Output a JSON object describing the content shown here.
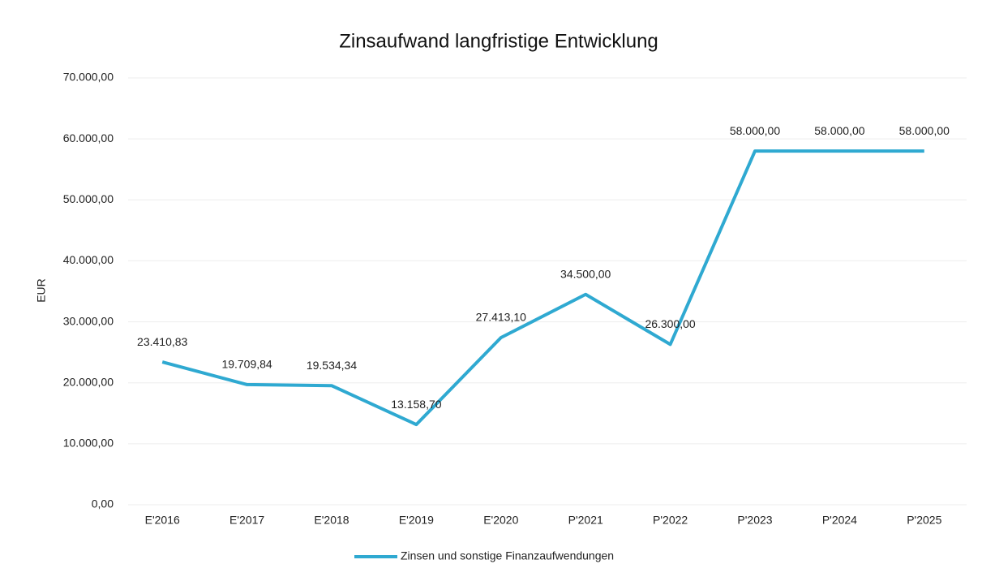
{
  "chart_data": {
    "type": "line",
    "title": "Zinsaufwand langfristige Entwicklung",
    "y_label": "EUR",
    "categories": [
      "E'2016",
      "E'2017",
      "E'2018",
      "E'2019",
      "E'2020",
      "P'2021",
      "P'2022",
      "P'2023",
      "P'2024",
      "P'2025"
    ],
    "series": [
      {
        "name": "Zinsen und sonstige Finanzaufwendungen",
        "color": "#2fa9d1",
        "values": [
          23410.83,
          19709.84,
          19534.34,
          13158.7,
          27413.1,
          34500.0,
          26300.0,
          58000.0,
          58000.0,
          58000.0
        ],
        "value_labels": [
          "23.410,83",
          "19.709,84",
          "19.534,34",
          "13.158,70",
          "27.413,10",
          "34.500,00",
          "26.300,00",
          "58.000,00",
          "58.000,00",
          "58.000,00"
        ]
      }
    ],
    "ylim": [
      0,
      70000
    ],
    "yticks": [
      {
        "value": 0,
        "label": "0,00"
      },
      {
        "value": 10000,
        "label": "10.000,00"
      },
      {
        "value": 20000,
        "label": "20.000,00"
      },
      {
        "value": 30000,
        "label": "30.000,00"
      },
      {
        "value": 40000,
        "label": "40.000,00"
      },
      {
        "value": 50000,
        "label": "50.000,00"
      },
      {
        "value": 60000,
        "label": "60.000,00"
      },
      {
        "value": 70000,
        "label": "70.000,00"
      }
    ],
    "grid": true,
    "legend": "bottom"
  }
}
